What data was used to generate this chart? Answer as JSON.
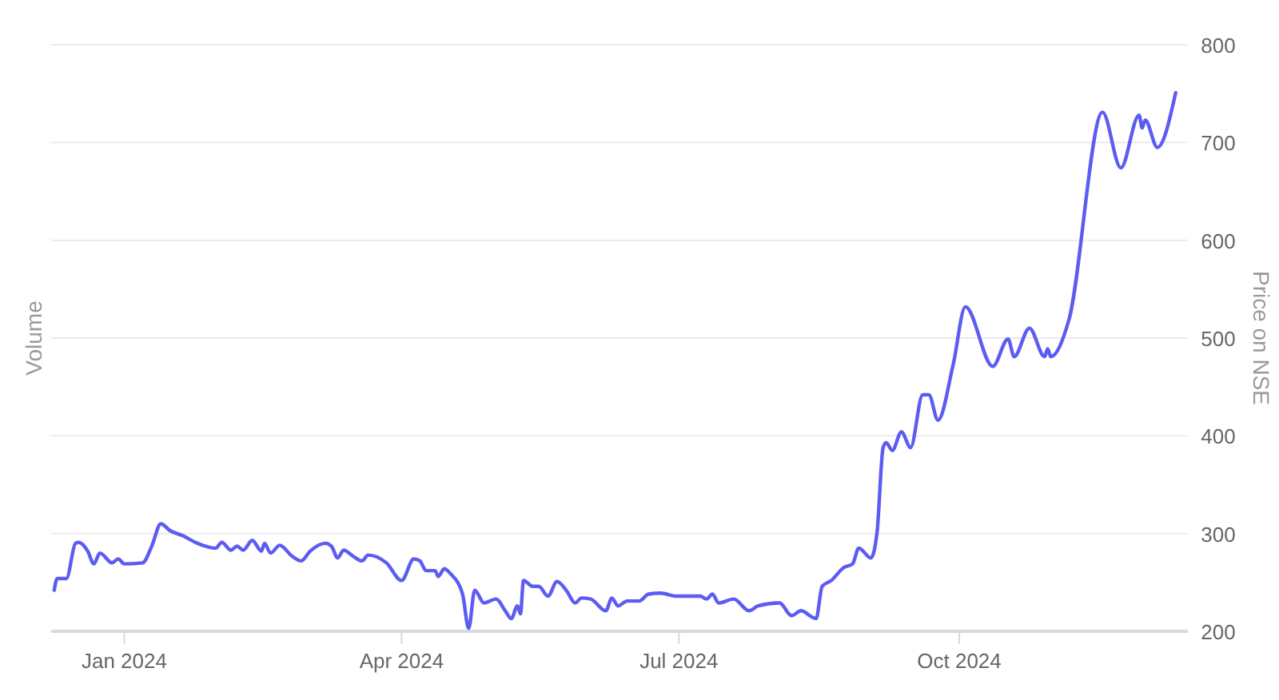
{
  "chart_data": {
    "type": "line",
    "ylabel": "Volume",
    "y2label": "Price on NSE",
    "grid": "y",
    "xlim": [
      "2023-12-08",
      "2024-12-15"
    ],
    "xticks": [
      {
        "value": "2024-01-01",
        "label": "Jan 2024"
      },
      {
        "value": "2024-04-01",
        "label": "Apr 2024"
      },
      {
        "value": "2024-07-01",
        "label": "Jul 2024"
      },
      {
        "value": "2024-10-01",
        "label": "Oct 2024"
      }
    ],
    "y2lim": [
      200,
      800
    ],
    "y2ticks": [
      200,
      300,
      400,
      500,
      600,
      700,
      800
    ],
    "series": [
      {
        "axis": "y2",
        "color": "#5c5cf2",
        "line_style": "solid",
        "x": [
          "2023-12-09",
          "2023-12-10",
          "2023-12-13",
          "2023-12-16",
          "2023-12-17",
          "2023-12-20",
          "2023-12-22",
          "2023-12-24",
          "2023-12-28",
          "2023-12-30",
          "2024-01-01",
          "2024-01-07",
          "2024-01-10",
          "2024-01-13",
          "2024-01-16",
          "2024-01-20",
          "2024-01-25",
          "2024-01-31",
          "2024-02-02",
          "2024-02-05",
          "2024-02-07",
          "2024-02-09",
          "2024-02-12",
          "2024-02-15",
          "2024-02-16",
          "2024-02-18",
          "2024-02-21",
          "2024-02-25",
          "2024-02-28",
          "2024-03-02",
          "2024-03-07",
          "2024-03-09",
          "2024-03-11",
          "2024-03-13",
          "2024-03-16",
          "2024-03-19",
          "2024-03-21",
          "2024-03-27",
          "2024-04-01",
          "2024-04-05",
          "2024-04-07",
          "2024-04-09",
          "2024-04-12",
          "2024-04-13",
          "2024-04-15",
          "2024-04-17",
          "2024-04-21",
          "2024-04-23",
          "2024-04-25",
          "2024-04-28",
          "2024-05-02",
          "2024-05-05",
          "2024-05-07",
          "2024-05-09",
          "2024-05-10",
          "2024-05-11",
          "2024-05-14",
          "2024-05-16",
          "2024-05-19",
          "2024-05-22",
          "2024-05-25",
          "2024-05-28",
          "2024-05-30",
          "2024-06-02",
          "2024-06-07",
          "2024-06-09",
          "2024-06-11",
          "2024-06-14",
          "2024-06-18",
          "2024-06-21",
          "2024-06-25",
          "2024-06-30",
          "2024-07-08",
          "2024-07-10",
          "2024-07-12",
          "2024-07-14",
          "2024-07-19",
          "2024-07-24",
          "2024-07-27",
          "2024-08-03",
          "2024-08-07",
          "2024-08-10",
          "2024-08-15",
          "2024-08-17",
          "2024-08-20",
          "2024-08-24",
          "2024-08-27",
          "2024-08-29",
          "2024-09-02",
          "2024-09-04",
          "2024-09-06",
          "2024-09-07",
          "2024-09-09",
          "2024-09-12",
          "2024-09-15",
          "2024-09-19",
          "2024-09-21",
          "2024-09-24",
          "2024-09-29",
          "2024-10-03",
          "2024-10-12",
          "2024-10-17",
          "2024-10-19",
          "2024-10-24",
          "2024-10-29",
          "2024-10-30",
          "2024-10-31",
          "2024-11-06",
          "2024-11-17",
          "2024-11-23",
          "2024-11-29",
          "2024-11-30",
          "2024-12-01",
          "2024-12-05",
          "2024-12-11"
        ],
        "values": [
          242,
          254,
          254,
          290,
          291,
          282,
          269,
          280,
          270,
          274,
          269,
          270,
          287,
          310,
          303,
          298,
          290,
          285,
          291,
          283,
          287,
          283,
          293,
          282,
          290,
          280,
          288,
          277,
          272,
          282,
          290,
          287,
          275,
          283,
          277,
          272,
          278,
          270,
          252,
          274,
          272,
          262,
          262,
          256,
          264,
          259,
          238,
          203,
          242,
          229,
          233,
          221,
          213,
          226,
          218,
          252,
          246,
          246,
          236,
          251,
          242,
          229,
          234,
          233,
          221,
          234,
          226,
          231,
          231,
          238,
          239,
          236,
          236,
          233,
          238,
          229,
          233,
          221,
          226,
          229,
          216,
          221,
          213,
          246,
          252,
          265,
          269,
          285,
          275,
          301,
          388,
          393,
          385,
          404,
          388,
          442,
          442,
          416,
          473,
          532,
          471,
          499,
          481,
          510,
          481,
          489,
          481,
          519,
          731,
          674,
          728,
          715,
          723,
          695,
          751
        ]
      }
    ]
  }
}
